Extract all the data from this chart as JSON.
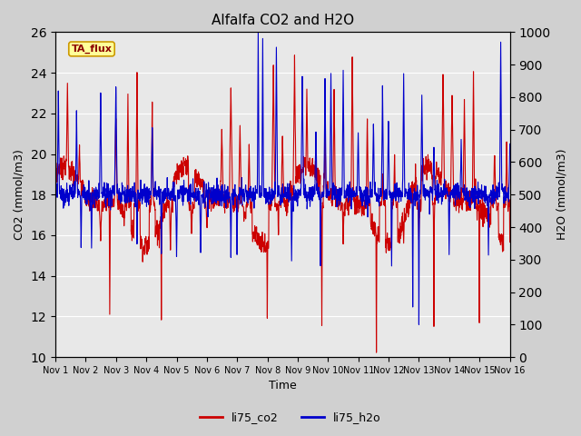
{
  "title": "Alfalfa CO2 and H2O",
  "xlabel": "Time",
  "ylabel_left": "CO2 (mmol/m3)",
  "ylabel_right": "H2O (mmol/m3)",
  "annotation": "TA_flux",
  "legend_labels": [
    "li75_co2",
    "li75_h2o"
  ],
  "co2_color": "#cc0000",
  "h2o_color": "#0000cc",
  "ylim_left": [
    10,
    26
  ],
  "ylim_right": [
    0,
    1000
  ],
  "yticks_left": [
    10,
    12,
    14,
    16,
    18,
    20,
    22,
    24,
    26
  ],
  "yticks_right": [
    0,
    100,
    200,
    300,
    400,
    500,
    600,
    700,
    800,
    900,
    1000
  ],
  "plot_bg_color": "#e8e8e8",
  "fig_bg_color": "#d0d0d0",
  "annotation_bg": "#ffff99",
  "annotation_border": "#cc9900",
  "linewidth": 0.8,
  "n_points": 2000
}
